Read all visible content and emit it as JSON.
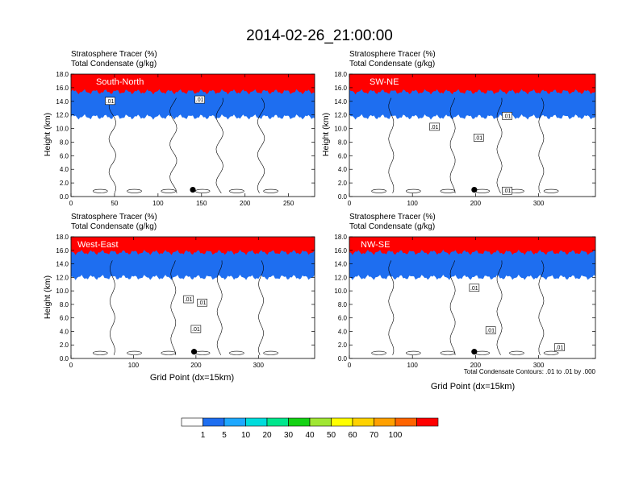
{
  "title": "2014-02-26_21:00:00",
  "colors": [
    "#ffffff",
    "#1e6ef0",
    "#1ea8ff",
    "#00dcdc",
    "#00e68c",
    "#14d214",
    "#a0e632",
    "#ffff00",
    "#ffd200",
    "#ffa000",
    "#ff6400",
    "#ff0000"
  ],
  "colorbar": {
    "labels": [
      "1",
      "5",
      "10",
      "20",
      "30",
      "40",
      "50",
      "60",
      "70",
      "100"
    ]
  },
  "contour_note": "Total Condensate Contours: .01 to .01 by .000",
  "chart_data": [
    {
      "type": "heatmap",
      "panel_label": "South-North",
      "header_line1": "Stratosphere Tracer   (%)",
      "header_line2": "Total Condensate   (g/kg)",
      "ylabel": "Height (km)",
      "xlabel": "",
      "xlim": [
        0,
        280
      ],
      "ylim": [
        0,
        18
      ],
      "xticks": [
        0,
        50,
        100,
        150,
        200,
        250
      ],
      "yticks": [
        "0.0",
        "2.0",
        "4.0",
        "6.0",
        "8.0",
        "10.0",
        "12.0",
        "14.0",
        "16.0",
        "18.0"
      ],
      "tropopause_height_km": 15.0,
      "marker": {
        "x": 140,
        "y": 1.0
      },
      "contour_labels": [
        {
          "text": ".01",
          "x": 45,
          "y": 14.0
        },
        {
          "text": ".01",
          "x": 148,
          "y": 14.2
        }
      ]
    },
    {
      "type": "heatmap",
      "panel_label": "SW-NE",
      "header_line1": "Stratosphere Tracer   (%)",
      "header_line2": "Total Condensate   (g/kg)",
      "ylabel": "Height (km)",
      "xlabel": "",
      "xlim": [
        0,
        390
      ],
      "ylim": [
        0,
        18
      ],
      "xticks": [
        0,
        100,
        200,
        300
      ],
      "yticks": [
        "0.0",
        "2.0",
        "4.0",
        "6.0",
        "8.0",
        "10.0",
        "12.0",
        "14.0",
        "16.0",
        "18.0"
      ],
      "tropopause_height_km": 15.0,
      "marker": {
        "x": 198,
        "y": 1.0
      },
      "contour_labels": [
        {
          "text": ".01",
          "x": 135,
          "y": 10.2
        },
        {
          "text": ".01",
          "x": 205,
          "y": 8.6
        },
        {
          "text": ".01",
          "x": 250,
          "y": 11.8
        },
        {
          "text": ".01",
          "x": 250,
          "y": 0.8
        }
      ]
    },
    {
      "type": "heatmap",
      "panel_label": "West-East",
      "header_line1": "Stratosphere Tracer   (%)",
      "header_line2": "Total Condensate   (g/kg)",
      "ylabel": "Height (km)",
      "xlabel": "Grid Point (dx=15km)",
      "xlim": [
        0,
        390
      ],
      "ylim": [
        0,
        18
      ],
      "xticks": [
        0,
        100,
        200,
        300
      ],
      "yticks": [
        "0.0",
        "2.0",
        "4.0",
        "6.0",
        "8.0",
        "10.0",
        "12.0",
        "14.0",
        "16.0",
        "18.0"
      ],
      "tropopause_height_km": 15.3,
      "marker": {
        "x": 197,
        "y": 1.0
      },
      "contour_labels": [
        {
          "text": ".01",
          "x": 188,
          "y": 8.7
        },
        {
          "text": ".01",
          "x": 210,
          "y": 8.2
        },
        {
          "text": ".01",
          "x": 200,
          "y": 4.3
        }
      ]
    },
    {
      "type": "heatmap",
      "panel_label": "NW-SE",
      "header_line1": "Stratosphere Tracer   (%)",
      "header_line2": "Total Condensate   (g/kg)",
      "ylabel": "",
      "xlabel": "Grid Point (dx=15km)",
      "xlim": [
        0,
        390
      ],
      "ylim": [
        0,
        18
      ],
      "xticks": [
        0,
        100,
        200,
        300
      ],
      "yticks": [
        "0.0",
        "2.0",
        "4.0",
        "6.0",
        "8.0",
        "10.0",
        "12.0",
        "14.0",
        "16.0",
        "18.0"
      ],
      "tropopause_height_km": 15.3,
      "marker": {
        "x": 198,
        "y": 1.0
      },
      "contour_labels": [
        {
          "text": ".01",
          "x": 198,
          "y": 10.4
        },
        {
          "text": ".01",
          "x": 224,
          "y": 4.1
        },
        {
          "text": ".01",
          "x": 333,
          "y": 1.6
        }
      ]
    }
  ]
}
